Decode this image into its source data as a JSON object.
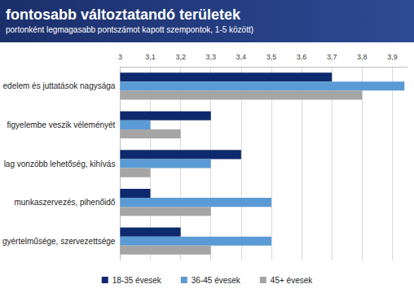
{
  "chart_data": {
    "type": "bar",
    "orientation": "horizontal",
    "title": "fontosabb változtatandó területek",
    "subtitle": "portonként legmagasabb pontszámot kapott szempontok, 1-5 között)",
    "categories": [
      "edelem és juttatások nagysága",
      "figyelembe veszik véleményét",
      "lag vonzóbb lehetőség, kihívás",
      "munkaszervezés, pihenőidő",
      "gyértelműsége, szervezettsége"
    ],
    "series": [
      {
        "name": "18-35 évesek",
        "color": "#0e2a6e",
        "values": [
          3.7,
          3.3,
          3.4,
          3.1,
          3.2
        ]
      },
      {
        "name": "36-45 évesek",
        "color": "#5b9bd5",
        "values": [
          3.94,
          3.1,
          3.3,
          3.5,
          3.5
        ]
      },
      {
        "name": "45+ évesek",
        "color": "#a5a5a5",
        "values": [
          3.8,
          3.2,
          3.1,
          3.3,
          3.3
        ]
      }
    ],
    "xlim": [
      3,
      3.95
    ],
    "xticks": [
      3,
      {
        "value": 3.1,
        "label": "3,1"
      },
      {
        "value": 3.2,
        "label": "3,2"
      },
      {
        "value": 3.3,
        "label": "3,3"
      },
      {
        "value": 3.4,
        "label": "3,4"
      },
      {
        "value": 3.5,
        "label": "3,5"
      },
      {
        "value": 3.6,
        "label": "3,6"
      },
      {
        "value": 3.7,
        "label": "3,7"
      },
      {
        "value": 3.8,
        "label": "3,8"
      },
      {
        "value": 3.9,
        "label": "3,9"
      }
    ],
    "grid": true,
    "legend": "bottom",
    "data_labels": false
  }
}
